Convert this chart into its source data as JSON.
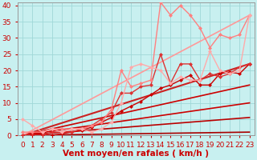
{
  "background_color": "#c8f0f0",
  "grid_color": "#a0d8d8",
  "xlim": [
    -0.5,
    23.5
  ],
  "ylim": [
    0,
    41
  ],
  "xticks": [
    0,
    1,
    2,
    3,
    4,
    5,
    6,
    7,
    8,
    9,
    10,
    11,
    12,
    13,
    14,
    15,
    16,
    17,
    18,
    19,
    20,
    21,
    22,
    23
  ],
  "yticks": [
    0,
    5,
    10,
    15,
    20,
    25,
    30,
    35,
    40
  ],
  "lines": [
    {
      "x": [
        0,
        23
      ],
      "y": [
        0,
        1.0
      ],
      "color": "#aa0000",
      "linewidth": 1.2,
      "marker": null,
      "linestyle": "-"
    },
    {
      "x": [
        0,
        23
      ],
      "y": [
        0,
        5.5
      ],
      "color": "#bb0000",
      "linewidth": 1.2,
      "marker": null,
      "linestyle": "-"
    },
    {
      "x": [
        0,
        23
      ],
      "y": [
        0,
        10.0
      ],
      "color": "#cc0000",
      "linewidth": 1.2,
      "marker": null,
      "linestyle": "-"
    },
    {
      "x": [
        0,
        23
      ],
      "y": [
        0,
        15.5
      ],
      "color": "#cc0000",
      "linewidth": 1.2,
      "marker": null,
      "linestyle": "-"
    },
    {
      "x": [
        0,
        23
      ],
      "y": [
        0,
        22.0
      ],
      "color": "#cc2222",
      "linewidth": 1.5,
      "marker": null,
      "linestyle": "-"
    },
    {
      "x": [
        0,
        23
      ],
      "y": [
        0,
        37.0
      ],
      "color": "#ff9999",
      "linewidth": 1.2,
      "marker": null,
      "linestyle": "-"
    },
    {
      "x": [
        0,
        1,
        2,
        3,
        4,
        5,
        6,
        7,
        8,
        9,
        10,
        11,
        12,
        13,
        14,
        15,
        16,
        17,
        18,
        19,
        20,
        21,
        22,
        23
      ],
      "y": [
        0,
        0,
        0,
        0,
        0.5,
        1.0,
        1.5,
        2.5,
        4.0,
        5.5,
        7.5,
        9.0,
        10.5,
        12.5,
        14.5,
        15.5,
        17.0,
        18.5,
        15.5,
        15.5,
        19.0,
        19.5,
        19.0,
        22.0
      ],
      "color": "#cc0000",
      "linewidth": 1.0,
      "marker": "D",
      "markersize": 2.0,
      "linestyle": "-"
    },
    {
      "x": [
        0,
        1,
        2,
        3,
        4,
        5,
        6,
        7,
        8,
        9,
        10,
        11,
        12,
        13,
        14,
        15,
        16,
        17,
        18,
        19,
        20,
        21,
        22,
        23
      ],
      "y": [
        0,
        0,
        0,
        1,
        1,
        1,
        2,
        3,
        5,
        7,
        13,
        13,
        15,
        15.5,
        25,
        16,
        22,
        22,
        17,
        19,
        18,
        19,
        21,
        22
      ],
      "color": "#dd3333",
      "linewidth": 1.0,
      "marker": "D",
      "markersize": 2.0,
      "linestyle": "-"
    },
    {
      "x": [
        0,
        1,
        2,
        3,
        4,
        5,
        6,
        7,
        8,
        9,
        10,
        11,
        12,
        13,
        14,
        15,
        16,
        17,
        18,
        19,
        20,
        21,
        22,
        23
      ],
      "y": [
        1,
        1,
        1,
        2,
        2,
        2,
        2,
        3,
        4,
        8,
        20,
        15,
        16,
        17,
        41,
        37,
        40,
        37,
        33,
        27,
        31,
        30,
        31,
        37
      ],
      "color": "#ff8080",
      "linewidth": 1.0,
      "marker": "D",
      "markersize": 2.0,
      "linestyle": "-"
    },
    {
      "x": [
        0,
        1,
        2,
        3,
        4,
        5,
        6,
        7,
        8,
        9,
        10,
        11,
        12,
        13,
        14,
        15,
        16,
        17,
        18,
        19,
        20,
        21,
        22,
        23
      ],
      "y": [
        5,
        3,
        1,
        2,
        1,
        2,
        2,
        1,
        2,
        4,
        10,
        21,
        22,
        21,
        20,
        16,
        18,
        17,
        17,
        26,
        20,
        19,
        20,
        37
      ],
      "color": "#ffaaaa",
      "linewidth": 1.0,
      "marker": "D",
      "markersize": 2.0,
      "linestyle": "-"
    }
  ],
  "xlabel": "Vent moyen/en rafales ( km/h )",
  "xlabel_color": "#cc0000",
  "tick_color": "#cc0000",
  "xlabel_fontsize": 7.5,
  "tick_fontsize": 6.5
}
